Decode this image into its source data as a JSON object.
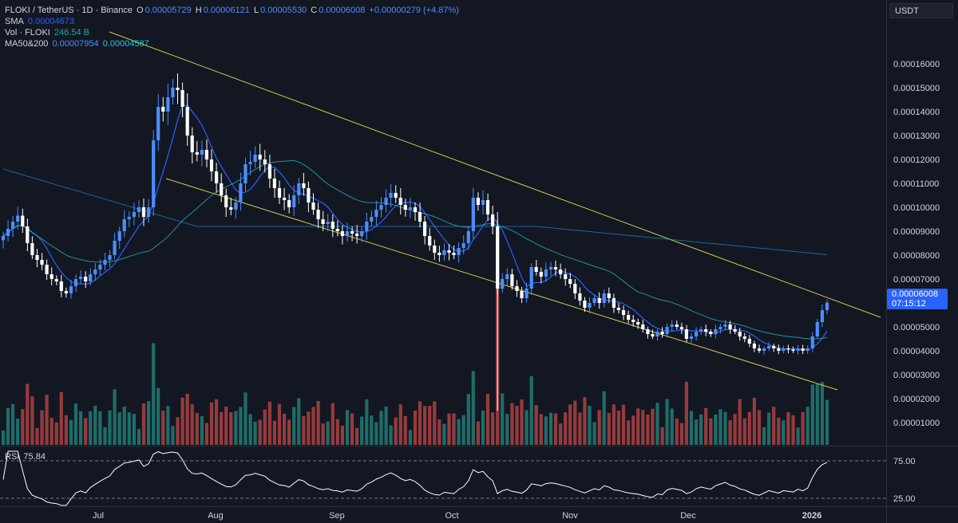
{
  "header": {
    "symbol": "FLOKI / TetherUS · 1D · Binance",
    "open_label": "O",
    "open": "0.00005729",
    "high_label": "H",
    "high": "0.00006121",
    "low_label": "L",
    "low": "0.00005530",
    "close_label": "C",
    "close": "0.00006008",
    "change": "+0.00000279 (+4.87%)",
    "sma_label": "SMA",
    "sma_value": "0.00004673",
    "vol_label": "Vol · FLOKI",
    "vol_value": "246.54 B",
    "ma_label": "MA50&200",
    "ma50_value": "0.00007954",
    "ma200_value": "0.00004587"
  },
  "currency": "USDT",
  "price_tag": {
    "price": "0.00006008",
    "countdown": "07:15:12"
  },
  "rsi": {
    "label": "RSI",
    "value": "75.84",
    "levels": [
      "75.00",
      "25.00"
    ]
  },
  "chart_data": {
    "type": "candlestick",
    "symbol": "FLOKI/USDT",
    "interval": "1D",
    "y_axis_ticks": [
      1e-05,
      2e-05,
      3e-05,
      4e-05,
      5e-05,
      6e-05,
      7e-05,
      8e-05,
      9e-05,
      0.0001,
      0.00011,
      0.00012,
      0.00013,
      0.00014,
      0.00015,
      0.00016
    ],
    "y_axis_tick_labels": [
      "0.00001000",
      "0.00002000",
      "0.00003000",
      "0.00004000",
      "0.00005000",
      "0.00006000",
      "0.00007000",
      "0.00008000",
      "0.00009000",
      "0.00010000",
      "0.00011000",
      "0.00012000",
      "0.00013000",
      "0.00014000",
      "0.00015000",
      "0.00016000"
    ],
    "x_axis_labels": [
      "Jul",
      "Aug",
      "Sep",
      "Oct",
      "Nov",
      "Dec",
      "2026"
    ],
    "close_series_approx": [
      8.8e-05,
      9.1e-05,
      9.4e-05,
      9.65e-05,
      9.2e-05,
      8.5e-05,
      8e-05,
      7.8e-05,
      7.6e-05,
      7.2e-05,
      7e-05,
      6.9e-05,
      6.5e-05,
      6.4e-05,
      6.7e-05,
      7e-05,
      7.1e-05,
      6.9e-05,
      7.2e-05,
      7.4e-05,
      7.6e-05,
      7.8e-05,
      8e-05,
      8.6e-05,
      9e-05,
      9.5e-05,
      9.6e-05,
      9.8e-05,
      0.0001,
      9.6e-05,
      0.0001,
      0.000128,
      0.000142,
      0.00014,
      0.000146,
      0.00015,
      0.000149,
      0.000142,
      0.00013,
      0.000123,
      0.000122,
      0.000124,
      0.00012,
      0.000115,
      0.00011,
      0.000105,
      0.0001,
      9.9e-05,
      0.000102,
      0.00011,
      0.000118,
      0.000119,
      0.000122,
      0.00012,
      0.000118,
      0.000112,
      0.000108,
      0.000104,
      0.000103,
      0.0001,
      0.000105,
      0.00011,
      0.000108,
      0.000102,
      9.9e-05,
      9.5e-05,
      9.3e-05,
      9.4e-05,
      9.1e-05,
      9e-05,
      8.8e-05,
      9e-05,
      8.9e-05,
      8.8e-05,
      9e-05,
      9.4e-05,
      9.6e-05,
      9.9e-05,
      0.000101,
      0.000104,
      0.000106,
      0.000104,
      0.000101,
      9.9e-05,
      0.0001,
      9.8e-05,
      9.4e-05,
      8.8e-05,
      8.4e-05,
      8.1e-05,
      8e-05,
      8.2e-05,
      8.1e-05,
      8e-05,
      8.3e-05,
      8.5e-05,
      9e-05,
      0.000104,
      0.000101,
      0.000103,
      9.7e-05,
      9.2e-05,
      6.6e-05,
      7e-05,
      7.2e-05,
      6.7e-05,
      6.5e-05,
      6.2e-05,
      6.6e-05,
      7.5e-05,
      7.3e-05,
      7.1e-05,
      7.4e-05,
      7.5e-05,
      7.4e-05,
      7.2e-05,
      7e-05,
      6.8e-05,
      6.4e-05,
      6.1e-05,
      5.8e-05,
      6e-05,
      6.2e-05,
      6e-05,
      6.4e-05,
      6.2e-05,
      5.8e-05,
      5.7e-05,
      5.5e-05,
      5.3e-05,
      5.2e-05,
      5.1e-05,
      4.9e-05,
      4.7e-05,
      4.6e-05,
      4.8e-05,
      4.7e-05,
      5e-05,
      5.1e-05,
      5e-05,
      4.9e-05,
      4.5e-05,
      4.6e-05,
      4.8e-05,
      4.9e-05,
      4.8e-05,
      4.7e-05,
      4.9e-05,
      5e-05,
      5.1e-05,
      4.9e-05,
      4.8e-05,
      4.6e-05,
      4.5e-05,
      4.3e-05,
      4.1e-05,
      4e-05,
      4.1e-05,
      4.2e-05,
      4.1e-05,
      4e-05,
      4.1e-05,
      4.05e-05,
      4e-05,
      4.1e-05,
      4e-05,
      4.1e-05,
      4.6e-05,
      5.2e-05,
      5.7e-05,
      6.01e-05
    ],
    "series_lines": [
      {
        "name": "SMA",
        "color": "#2962ff",
        "last": 4.673e-05
      },
      {
        "name": "MA50",
        "color": "#2196f3",
        "last": 7.954e-05
      },
      {
        "name": "MA200",
        "color": "#26c6da",
        "last": 4.587e-05
      }
    ],
    "channel": {
      "upper": [
        {
          "date": "Jun",
          "price": 0.000163
        },
        {
          "date": "2026",
          "price": 5.2e-05
        }
      ],
      "lower": [
        {
          "date": "Jul",
          "price": 0.000105
        },
        {
          "date": "2026",
          "price": 2.4e-05
        }
      ]
    },
    "up_color": "#4c8dff",
    "down_color": "#ffffff",
    "vol_up_color": "#26a69a",
    "vol_down_color": "#ef5350",
    "channel_color": "#d4c84a",
    "grid": false
  }
}
